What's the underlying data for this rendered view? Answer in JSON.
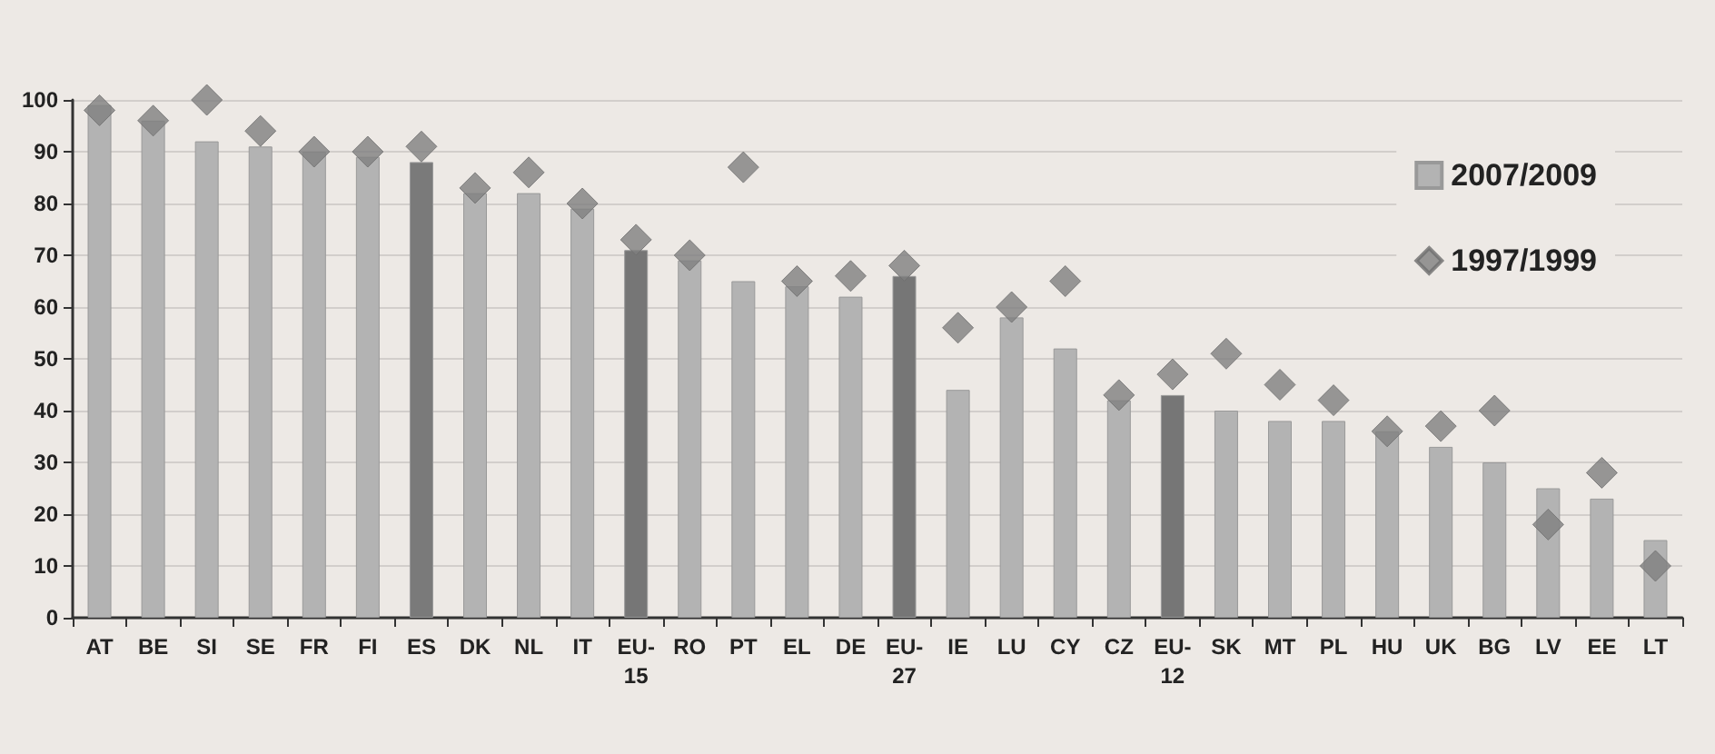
{
  "chart_data": {
    "type": "bar",
    "categories": [
      "AT",
      "BE",
      "SI",
      "SE",
      "FR",
      "FI",
      "ES",
      "DK",
      "NL",
      "IT",
      "EU-15",
      "RO",
      "PT",
      "EL",
      "DE",
      "EU-27",
      "IE",
      "LU",
      "CY",
      "CZ",
      "EU-12",
      "SK",
      "MT",
      "PL",
      "HU",
      "UK",
      "BG",
      "LV",
      "EE",
      "LT"
    ],
    "series": [
      {
        "name": "2007/2009",
        "color": "#b3b3b3",
        "colors": [
          "#b3b3b3",
          "#b3b3b3",
          "#b3b3b3",
          "#b3b3b3",
          "#b3b3b3",
          "#b3b3b3",
          "#7a7a7a",
          "#b3b3b3",
          "#b3b3b3",
          "#b3b3b3",
          "#767676",
          "#b3b3b3",
          "#b3b3b3",
          "#b3b3b3",
          "#b3b3b3",
          "#767676",
          "#b3b3b3",
          "#b3b3b3",
          "#b3b3b3",
          "#b3b3b3",
          "#767676",
          "#b3b3b3",
          "#b3b3b3",
          "#b3b3b3",
          "#b3b3b3",
          "#b3b3b3",
          "#b3b3b3",
          "#b3b3b3",
          "#b3b3b3",
          "#b3b3b3"
        ],
        "values": [
          99,
          96,
          92,
          91,
          90,
          89,
          88,
          82,
          82,
          79,
          71,
          69,
          65,
          64,
          62,
          66,
          44,
          58,
          52,
          42,
          43,
          40,
          38,
          38,
          36,
          33,
          30,
          25,
          23,
          15
        ]
      },
      {
        "name": "1997/1999",
        "type": "scatter",
        "color": "#808080",
        "marker": "diamond",
        "values": [
          98,
          96,
          100,
          94,
          90,
          90,
          91,
          83,
          86,
          80,
          73,
          70,
          87,
          65,
          66,
          68,
          56,
          60,
          65,
          43,
          47,
          51,
          45,
          42,
          36,
          37,
          40,
          18,
          28,
          10
        ]
      }
    ],
    "ylim": [
      0,
      100
    ],
    "yticks": [
      0,
      10,
      20,
      30,
      40,
      50,
      60,
      70,
      80,
      90,
      100
    ],
    "grid": "y",
    "legend": "top right"
  }
}
